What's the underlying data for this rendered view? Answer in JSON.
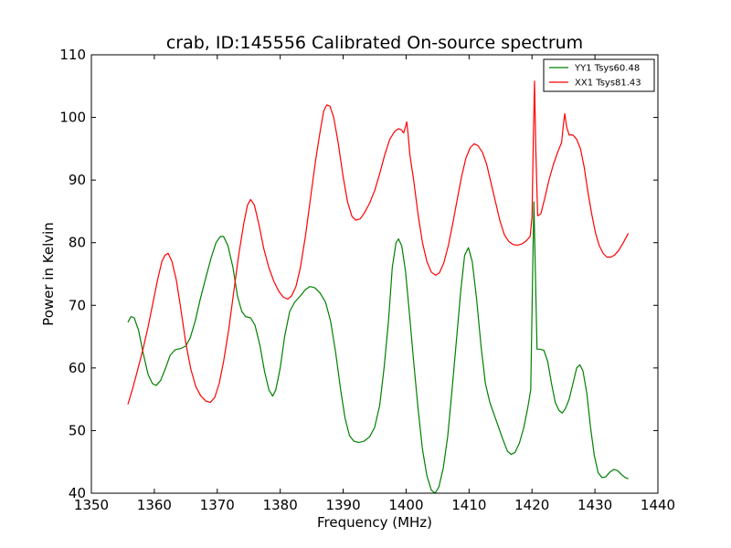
{
  "chart_data": {
    "type": "line",
    "title": "crab, ID:145556 Calibrated On-source spectrum",
    "xlabel": "Frequency (MHz)",
    "ylabel": "Power in Kelvin",
    "xlim": [
      1350,
      1440
    ],
    "ylim": [
      40,
      110
    ],
    "xticks": [
      1350,
      1360,
      1370,
      1380,
      1390,
      1400,
      1410,
      1420,
      1430,
      1440
    ],
    "yticks": [
      40,
      50,
      60,
      70,
      80,
      90,
      100,
      110
    ],
    "grid": false,
    "legend_position": "top-right",
    "series": [
      {
        "name": "YY1 Tsys60.48",
        "color": "#008000",
        "points": [
          [
            1355.8,
            67.3
          ],
          [
            1356.3,
            68.2
          ],
          [
            1356.8,
            68.0
          ],
          [
            1357.5,
            66.0
          ],
          [
            1358.2,
            62.5
          ],
          [
            1359,
            59.0
          ],
          [
            1359.7,
            57.5
          ],
          [
            1360.3,
            57.2
          ],
          [
            1361,
            58.0
          ],
          [
            1361.8,
            60.0
          ],
          [
            1362.5,
            62.0
          ],
          [
            1363.3,
            62.9
          ],
          [
            1364.2,
            63.1
          ],
          [
            1365,
            63.5
          ],
          [
            1365.7,
            64.8
          ],
          [
            1366.5,
            67.5
          ],
          [
            1367.3,
            71.0
          ],
          [
            1368.2,
            74.5
          ],
          [
            1369,
            77.5
          ],
          [
            1369.8,
            80.0
          ],
          [
            1370.5,
            81.0
          ],
          [
            1371,
            81.0
          ],
          [
            1371.7,
            79.5
          ],
          [
            1372.5,
            76.0
          ],
          [
            1373.2,
            71.5
          ],
          [
            1373.9,
            69.0
          ],
          [
            1374.5,
            68.2
          ],
          [
            1375.3,
            68.0
          ],
          [
            1376,
            66.8
          ],
          [
            1376.8,
            63.5
          ],
          [
            1377.5,
            59.5
          ],
          [
            1378.2,
            56.5
          ],
          [
            1378.8,
            55.5
          ],
          [
            1379.3,
            56.5
          ],
          [
            1380,
            60.0
          ],
          [
            1380.7,
            65.0
          ],
          [
            1381.5,
            69.0
          ],
          [
            1382.3,
            70.5
          ],
          [
            1383.2,
            71.5
          ],
          [
            1384,
            72.5
          ],
          [
            1384.7,
            73.0
          ],
          [
            1385.5,
            72.8
          ],
          [
            1386.3,
            72.0
          ],
          [
            1387.2,
            70.5
          ],
          [
            1388,
            67.5
          ],
          [
            1388.8,
            62.5
          ],
          [
            1389.6,
            56.5
          ],
          [
            1390.3,
            52.0
          ],
          [
            1391,
            49.2
          ],
          [
            1391.7,
            48.3
          ],
          [
            1392.5,
            48.1
          ],
          [
            1393.3,
            48.3
          ],
          [
            1394.2,
            49.0
          ],
          [
            1395,
            50.5
          ],
          [
            1395.8,
            54.0
          ],
          [
            1396.5,
            60.0
          ],
          [
            1397.2,
            67.5
          ],
          [
            1397.8,
            76.0
          ],
          [
            1398.4,
            80.0
          ],
          [
            1398.8,
            80.6
          ],
          [
            1399.3,
            79.5
          ],
          [
            1399.9,
            75.5
          ],
          [
            1400.5,
            69.0
          ],
          [
            1401.2,
            61.0
          ],
          [
            1401.9,
            53.5
          ],
          [
            1402.6,
            47.0
          ],
          [
            1403.3,
            42.8
          ],
          [
            1404,
            40.5
          ],
          [
            1404.6,
            40.0
          ],
          [
            1405.2,
            41.0
          ],
          [
            1405.9,
            44.0
          ],
          [
            1406.6,
            49.0
          ],
          [
            1407.3,
            56.5
          ],
          [
            1408,
            64.5
          ],
          [
            1408.7,
            72.5
          ],
          [
            1409.3,
            78.0
          ],
          [
            1409.9,
            79.2
          ],
          [
            1410.5,
            77.0
          ],
          [
            1411.2,
            71.0
          ],
          [
            1411.9,
            63.5
          ],
          [
            1412.6,
            57.5
          ],
          [
            1413.3,
            54.5
          ],
          [
            1414,
            52.5
          ],
          [
            1414.7,
            50.5
          ],
          [
            1415.4,
            48.5
          ],
          [
            1416.1,
            46.7
          ],
          [
            1416.7,
            46.2
          ],
          [
            1417.3,
            46.5
          ],
          [
            1418,
            48.0
          ],
          [
            1418.7,
            50.5
          ],
          [
            1419.3,
            53.5
          ],
          [
            1419.8,
            56.5
          ],
          [
            1420.1,
            75.0
          ],
          [
            1420.3,
            86.5
          ],
          [
            1420.5,
            77.0
          ],
          [
            1420.8,
            63.0
          ],
          [
            1421.3,
            63.0
          ],
          [
            1421.9,
            62.8
          ],
          [
            1422.5,
            61.0
          ],
          [
            1423.1,
            57.5
          ],
          [
            1423.7,
            54.5
          ],
          [
            1424.3,
            53.2
          ],
          [
            1424.8,
            52.8
          ],
          [
            1425.3,
            53.5
          ],
          [
            1425.9,
            55.0
          ],
          [
            1426.5,
            57.5
          ],
          [
            1427.1,
            60.0
          ],
          [
            1427.6,
            60.5
          ],
          [
            1428.1,
            59.5
          ],
          [
            1428.7,
            56.0
          ],
          [
            1429.3,
            50.5
          ],
          [
            1429.9,
            46.0
          ],
          [
            1430.5,
            43.3
          ],
          [
            1431.1,
            42.5
          ],
          [
            1431.7,
            42.6
          ],
          [
            1432.4,
            43.4
          ],
          [
            1433,
            43.8
          ],
          [
            1433.6,
            43.6
          ],
          [
            1434.2,
            43.0
          ],
          [
            1434.8,
            42.5
          ],
          [
            1435.3,
            42.3
          ]
        ]
      },
      {
        "name": "XX1 Tsys81.43",
        "color": "#ff0000",
        "points": [
          [
            1355.8,
            54.2
          ],
          [
            1356.5,
            56.5
          ],
          [
            1357.3,
            59.5
          ],
          [
            1358.2,
            63.0
          ],
          [
            1359,
            66.5
          ],
          [
            1359.8,
            70.5
          ],
          [
            1360.5,
            74.0
          ],
          [
            1361.2,
            77.0
          ],
          [
            1361.7,
            78.0
          ],
          [
            1362.2,
            78.3
          ],
          [
            1362.8,
            77.0
          ],
          [
            1363.5,
            74.0
          ],
          [
            1364.2,
            69.5
          ],
          [
            1365,
            64.0
          ],
          [
            1365.8,
            59.8
          ],
          [
            1366.6,
            57.0
          ],
          [
            1367.4,
            55.5
          ],
          [
            1368.2,
            54.7
          ],
          [
            1368.9,
            54.5
          ],
          [
            1369.6,
            55.3
          ],
          [
            1370.3,
            57.5
          ],
          [
            1371,
            61.0
          ],
          [
            1371.8,
            66.0
          ],
          [
            1372.6,
            72.0
          ],
          [
            1373.4,
            78.0
          ],
          [
            1374.2,
            83.0
          ],
          [
            1374.8,
            86.0
          ],
          [
            1375.3,
            86.9
          ],
          [
            1375.9,
            86.0
          ],
          [
            1376.6,
            83.0
          ],
          [
            1377.4,
            79.0
          ],
          [
            1378.2,
            76.0
          ],
          [
            1379,
            73.8
          ],
          [
            1379.8,
            72.2
          ],
          [
            1380.5,
            71.3
          ],
          [
            1381.2,
            71.0
          ],
          [
            1381.8,
            71.5
          ],
          [
            1382.5,
            73.0
          ],
          [
            1383.2,
            76.0
          ],
          [
            1384,
            81.0
          ],
          [
            1384.8,
            87.0
          ],
          [
            1385.6,
            93.0
          ],
          [
            1386.3,
            97.5
          ],
          [
            1386.9,
            101.0
          ],
          [
            1387.4,
            102.0
          ],
          [
            1387.9,
            101.8
          ],
          [
            1388.5,
            100.0
          ],
          [
            1389.2,
            96.0
          ],
          [
            1390,
            90.5
          ],
          [
            1390.7,
            86.5
          ],
          [
            1391.4,
            84.2
          ],
          [
            1392,
            83.6
          ],
          [
            1392.7,
            83.8
          ],
          [
            1393.4,
            84.8
          ],
          [
            1394.2,
            86.3
          ],
          [
            1395,
            88.3
          ],
          [
            1395.8,
            91.0
          ],
          [
            1396.6,
            94.0
          ],
          [
            1397.4,
            96.5
          ],
          [
            1398.2,
            97.8
          ],
          [
            1398.8,
            98.2
          ],
          [
            1399.3,
            98.0
          ],
          [
            1399.6,
            97.5
          ],
          [
            1399.9,
            98.5
          ],
          [
            1400.1,
            99.3
          ],
          [
            1400.3,
            97.5
          ],
          [
            1400.6,
            94.0
          ],
          [
            1401.2,
            90.0
          ],
          [
            1401.9,
            84.5
          ],
          [
            1402.6,
            80.0
          ],
          [
            1403.3,
            77.0
          ],
          [
            1404,
            75.3
          ],
          [
            1404.7,
            74.8
          ],
          [
            1405.3,
            75.2
          ],
          [
            1406,
            76.8
          ],
          [
            1406.7,
            79.5
          ],
          [
            1407.4,
            83.0
          ],
          [
            1408.1,
            86.8
          ],
          [
            1408.8,
            90.5
          ],
          [
            1409.5,
            93.5
          ],
          [
            1410.2,
            95.2
          ],
          [
            1410.8,
            95.8
          ],
          [
            1411.4,
            95.5
          ],
          [
            1412.1,
            94.5
          ],
          [
            1412.8,
            92.5
          ],
          [
            1413.5,
            89.5
          ],
          [
            1414.2,
            86.5
          ],
          [
            1414.9,
            83.5
          ],
          [
            1415.6,
            81.3
          ],
          [
            1416.3,
            80.2
          ],
          [
            1417,
            79.7
          ],
          [
            1417.7,
            79.6
          ],
          [
            1418.4,
            79.8
          ],
          [
            1419.1,
            80.3
          ],
          [
            1419.7,
            81.0
          ],
          [
            1420,
            84.0
          ],
          [
            1420.2,
            96.0
          ],
          [
            1420.4,
            105.8
          ],
          [
            1420.6,
            95.0
          ],
          [
            1420.9,
            84.3
          ],
          [
            1421.4,
            84.6
          ],
          [
            1422,
            87.0
          ],
          [
            1422.7,
            90.0
          ],
          [
            1423.4,
            92.5
          ],
          [
            1424.1,
            94.5
          ],
          [
            1424.7,
            96.0
          ],
          [
            1425,
            99.0
          ],
          [
            1425.2,
            100.6
          ],
          [
            1425.5,
            98.5
          ],
          [
            1425.9,
            97.2
          ],
          [
            1426.5,
            97.2
          ],
          [
            1427.1,
            96.5
          ],
          [
            1427.7,
            95.0
          ],
          [
            1428.3,
            92.0
          ],
          [
            1428.9,
            88.0
          ],
          [
            1429.5,
            84.5
          ],
          [
            1430.1,
            81.5
          ],
          [
            1430.7,
            79.5
          ],
          [
            1431.3,
            78.3
          ],
          [
            1431.9,
            77.7
          ],
          [
            1432.5,
            77.7
          ],
          [
            1433.1,
            78.0
          ],
          [
            1433.8,
            78.8
          ],
          [
            1434.5,
            80.0
          ],
          [
            1435.3,
            81.5
          ]
        ]
      }
    ]
  }
}
